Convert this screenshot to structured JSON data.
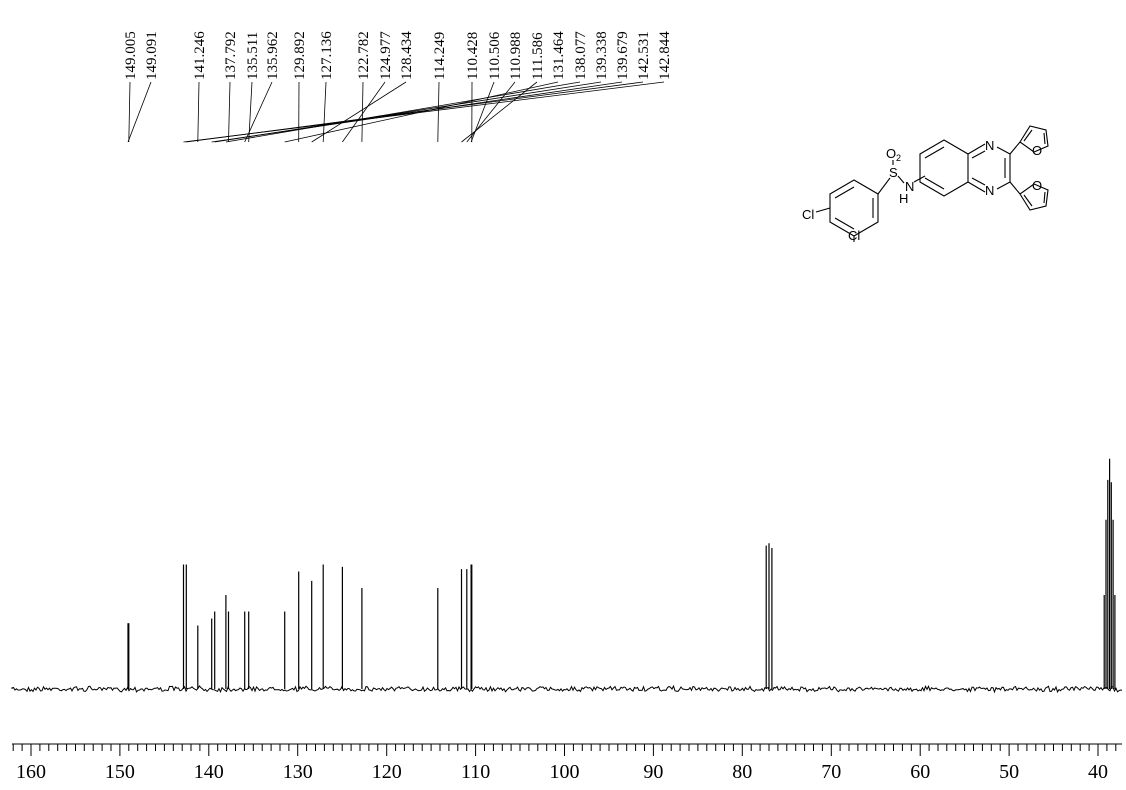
{
  "chart_data": {
    "type": "line",
    "title": "",
    "xlabel": "",
    "ylabel": "",
    "x_reversed": true,
    "xlim": [
      163,
      36
    ],
    "x_ticks": [
      160,
      150,
      140,
      130,
      120,
      110,
      100,
      90,
      80,
      70,
      60,
      50,
      40
    ],
    "x_tick_labels": [
      "160",
      "150",
      "140",
      "130",
      "120",
      "110",
      "100",
      "90",
      "80",
      "70",
      "60",
      "50",
      "40"
    ],
    "minor_tick_step": 1,
    "grid": false,
    "peak_labels": [
      "149.005",
      "149.091",
      "141.246",
      "137.792",
      "135.511",
      "135.962",
      "129.892",
      "127.136",
      "122.782",
      "124.977",
      "128.434",
      "114.249",
      "110.428",
      "110.506",
      "110.988",
      "111.586",
      "131.464",
      "138.077",
      "139.338",
      "139.679",
      "142.531",
      "142.844"
    ],
    "peaks": [
      {
        "ppm": 149.091,
        "height": 0.28
      },
      {
        "ppm": 149.005,
        "height": 0.28
      },
      {
        "ppm": 142.844,
        "height": 0.53
      },
      {
        "ppm": 142.531,
        "height": 0.53
      },
      {
        "ppm": 141.246,
        "height": 0.27
      },
      {
        "ppm": 139.679,
        "height": 0.3
      },
      {
        "ppm": 139.338,
        "height": 0.33
      },
      {
        "ppm": 138.077,
        "height": 0.4
      },
      {
        "ppm": 137.792,
        "height": 0.33
      },
      {
        "ppm": 135.962,
        "height": 0.33
      },
      {
        "ppm": 135.511,
        "height": 0.33
      },
      {
        "ppm": 131.464,
        "height": 0.33
      },
      {
        "ppm": 129.892,
        "height": 0.5
      },
      {
        "ppm": 128.434,
        "height": 0.46
      },
      {
        "ppm": 127.136,
        "height": 0.53
      },
      {
        "ppm": 124.977,
        "height": 0.52
      },
      {
        "ppm": 122.782,
        "height": 0.43
      },
      {
        "ppm": 114.249,
        "height": 0.43
      },
      {
        "ppm": 111.586,
        "height": 0.51
      },
      {
        "ppm": 110.988,
        "height": 0.51
      },
      {
        "ppm": 110.506,
        "height": 0.53
      },
      {
        "ppm": 110.428,
        "height": 0.53
      },
      {
        "ppm": 77.32,
        "height": 0.61
      },
      {
        "ppm": 77.0,
        "height": 0.62
      },
      {
        "ppm": 76.68,
        "height": 0.6
      },
      {
        "ppm": 39.3,
        "height": 0.4
      },
      {
        "ppm": 39.1,
        "height": 0.72
      },
      {
        "ppm": 38.9,
        "height": 0.89
      },
      {
        "ppm": 38.7,
        "height": 0.98
      },
      {
        "ppm": 38.5,
        "height": 0.88
      },
      {
        "ppm": 38.3,
        "height": 0.72
      },
      {
        "ppm": 38.1,
        "height": 0.4
      }
    ]
  },
  "structure": {
    "atom_labels": {
      "o2_main": "O",
      "o2_sub": "2",
      "sulfur": "S",
      "nh_n": "N",
      "nh_h": "H",
      "n_top": "N",
      "n_bottom": "N",
      "furan_o_top": "O",
      "furan_o_bottom": "O",
      "cl_para": "Cl",
      "cl_meta": "Cl"
    }
  }
}
